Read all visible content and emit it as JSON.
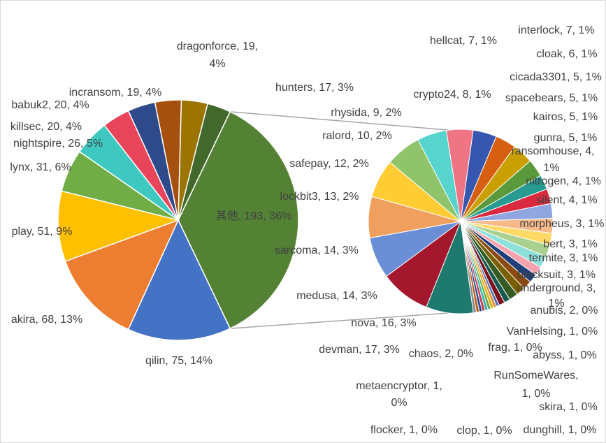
{
  "chart_data": {
    "type": "pie",
    "subtype": "pie-of-pie",
    "main_pie": [
      {
        "label": "其他, 193, 36%",
        "name": "其他",
        "value": 193,
        "color": "#548235"
      },
      {
        "label": "qilin, 75, 14%",
        "name": "qilin",
        "value": 75,
        "color": "#4472c4"
      },
      {
        "label": "akira, 68, 13%",
        "name": "akira",
        "value": 68,
        "color": "#ed7d31"
      },
      {
        "label": "play, 51, 9%",
        "name": "play",
        "value": 51,
        "color": "#ffc000"
      },
      {
        "label": "lynx, 31, 6%",
        "name": "lynx",
        "value": 31,
        "color": "#70ad47"
      },
      {
        "label": "nightspire, 26, 5%",
        "name": "nightspire",
        "value": 26,
        "color": "#3ec8c0"
      },
      {
        "label": "killsec, 20, 4%",
        "name": "killsec",
        "value": 20,
        "color": "#e8455b"
      },
      {
        "label": "babuk2, 20, 4%",
        "name": "babuk2",
        "value": 20,
        "color": "#2f4a8a"
      },
      {
        "label": "incransom, 19, 4%",
        "name": "incransom",
        "value": 19,
        "color": "#a5500f"
      },
      {
        "label": "dragonforce, 19, 4%",
        "name": "dragonforce",
        "value": 19,
        "color": "#9c7400"
      },
      {
        "label": "hunters, 17, 3%",
        "name": "hunters",
        "value": 17,
        "color": "#43682b"
      }
    ],
    "secondary_pie": [
      {
        "label": "nova, 16, 3%",
        "name": "nova",
        "value": 16,
        "color": "#1e7a6e"
      },
      {
        "label": "devman, 17, 3%",
        "name": "devman",
        "value": 17,
        "color": "#a3182c"
      },
      {
        "label": "medusa, 14, 3%",
        "name": "medusa",
        "value": 14,
        "color": "#6b8fd6"
      },
      {
        "label": "sarcoma, 14, 3%",
        "name": "sarcoma",
        "value": 14,
        "color": "#f0a05e"
      },
      {
        "label": "lockbit3, 13, 2%",
        "name": "lockbit3",
        "value": 13,
        "color": "#ffcc33"
      },
      {
        "label": "safepay, 12, 2%",
        "name": "safepay",
        "value": 12,
        "color": "#8fc46a"
      },
      {
        "label": "ralord, 10, 2%",
        "name": "ralord",
        "value": 10,
        "color": "#57d4cd"
      },
      {
        "label": "rhysida, 9, 2%",
        "name": "rhysida",
        "value": 9,
        "color": "#ef7585"
      },
      {
        "label": "crypto24, 8, 1%",
        "name": "crypto24",
        "value": 8,
        "color": "#3656b0"
      },
      {
        "label": "hellcat, 7, 1%",
        "name": "hellcat",
        "value": 7,
        "color": "#d65f12"
      },
      {
        "label": "interlock, 7, 1%",
        "name": "interlock",
        "value": 7,
        "color": "#c9a000"
      },
      {
        "label": "cloak, 6, 1%",
        "name": "cloak",
        "value": 6,
        "color": "#5a9a3a"
      },
      {
        "label": "cicada3301, 5, 1%",
        "name": "cicada3301",
        "value": 5,
        "color": "#279a92"
      },
      {
        "label": "spacebears, 5, 1%",
        "name": "spacebears",
        "value": 5,
        "color": "#d92a40"
      },
      {
        "label": "kairos, 5, 1%",
        "name": "kairos",
        "value": 5,
        "color": "#8fa6e0"
      },
      {
        "label": "gunra, 5, 1%",
        "name": "gunra",
        "value": 5,
        "color": "#f5b98a"
      },
      {
        "label": "ransomhouse, 4, 1%",
        "name": "ransomhouse",
        "value": 4,
        "color": "#ffd966"
      },
      {
        "label": "nitrogen, 4, 1%",
        "name": "nitrogen",
        "value": 4,
        "color": "#a9d08e"
      },
      {
        "label": "silent, 4, 1%",
        "name": "silent",
        "value": 4,
        "color": "#8ee0da"
      },
      {
        "label": "morpheus, 3, 1%",
        "name": "morpheus",
        "value": 3,
        "color": "#f4a3ae"
      },
      {
        "label": "bert, 3, 1%",
        "name": "bert",
        "value": 3,
        "color": "#1f3f7a"
      },
      {
        "label": "termite, 3, 1%",
        "name": "termite",
        "value": 3,
        "color": "#8a4a10"
      },
      {
        "label": "blacksuit, 3, 1%",
        "name": "blacksuit",
        "value": 3,
        "color": "#7a6000"
      },
      {
        "label": "underground, 3, 1%",
        "name": "underground",
        "value": 3,
        "color": "#355a24"
      },
      {
        "label": "anubis, 2, 0%",
        "name": "anubis",
        "value": 2,
        "color": "#145a52"
      },
      {
        "label": "chaos, 2, 0%",
        "name": "chaos",
        "value": 2,
        "color": "#7a1220"
      },
      {
        "label": "VanHelsing, 1, 0%",
        "name": "VanHelsing",
        "value": 1,
        "color": "#4f6fb5"
      },
      {
        "label": "frag, 1, 0%",
        "name": "frag",
        "value": 1,
        "color": "#e08a40"
      },
      {
        "label": "abyss, 1, 0%",
        "name": "abyss",
        "value": 1,
        "color": "#e0b000"
      },
      {
        "label": "RunSomeWares, 1, 0%",
        "name": "RunSomeWares",
        "value": 1,
        "color": "#6aa84f"
      },
      {
        "label": "metaencryptor, 1, 0%",
        "name": "metaencryptor",
        "value": 1,
        "color": "#33b5ad"
      },
      {
        "label": "skira, 1, 0%",
        "name": "skira",
        "value": 1,
        "color": "#c63a4d"
      },
      {
        "label": "flocker, 1, 0%",
        "name": "flocker",
        "value": 1,
        "color": "#2a4b9b"
      },
      {
        "label": "clop, 1, 0%",
        "name": "clop",
        "value": 1,
        "color": "#b95a15"
      },
      {
        "label": "dunghill, 1, 0%",
        "name": "dunghill",
        "value": 1,
        "color": "#8a8a8a"
      }
    ]
  }
}
